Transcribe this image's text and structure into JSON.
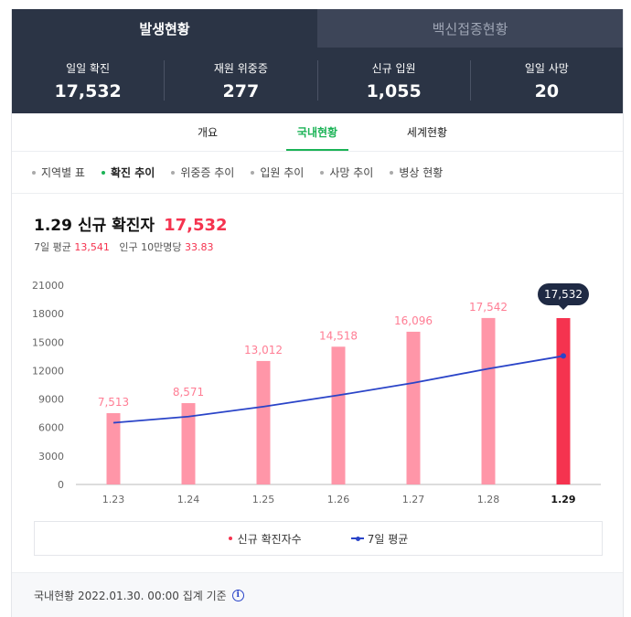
{
  "top_tabs": [
    {
      "label": "발생현황"
    },
    {
      "label": "백신접종현황"
    }
  ],
  "stats": [
    {
      "label": "일일 확진",
      "value": "17,532"
    },
    {
      "label": "재원 위중증",
      "value": "277"
    },
    {
      "label": "신규 입원",
      "value": "1,055"
    },
    {
      "label": "일일 사망",
      "value": "20"
    }
  ],
  "sub_tabs": [
    {
      "label": "개요"
    },
    {
      "label": "국내현황"
    },
    {
      "label": "세계현황"
    }
  ],
  "filters": [
    {
      "label": "지역별 표"
    },
    {
      "label": "확진 추이"
    },
    {
      "label": "위중증 추이"
    },
    {
      "label": "입원 추이"
    },
    {
      "label": "사망 추이"
    },
    {
      "label": "병상 현황"
    }
  ],
  "headline": {
    "date": "1.29",
    "title": "신규 확진자",
    "value": "17,532"
  },
  "subline": {
    "avg_label": "7일 평균",
    "avg_value": "13,541",
    "per_label": "인구 10만명당",
    "per_value": "33.83"
  },
  "chart_data": {
    "type": "bar",
    "categories": [
      "1.23",
      "1.24",
      "1.25",
      "1.26",
      "1.27",
      "1.28",
      "1.29"
    ],
    "series": [
      {
        "name": "신규 확진자수",
        "values": [
          7513,
          8571,
          13012,
          14518,
          16096,
          17542,
          17532
        ],
        "color": "#ff96a8",
        "highlight_color": "#f5334f"
      },
      {
        "name": "7일 평균",
        "type": "line",
        "values": [
          6500,
          7150,
          8200,
          9400,
          10700,
          12200,
          13541
        ],
        "color": "#2a44c8"
      }
    ],
    "data_labels": [
      "7,513",
      "8,571",
      "13,012",
      "14,518",
      "16,096",
      "17,542",
      "17,532"
    ],
    "y_ticks": [
      "0",
      "3000",
      "6000",
      "9000",
      "12000",
      "15000",
      "18000",
      "21000"
    ],
    "ylim": [
      0,
      21000
    ],
    "highlight_index": 6,
    "tooltip": "17,532"
  },
  "legend": [
    {
      "label": "신규 확진자수"
    },
    {
      "label": "7일 평균"
    }
  ],
  "footer": {
    "text": "국내현황 2022.01.30. 00:00 집계 기준"
  }
}
